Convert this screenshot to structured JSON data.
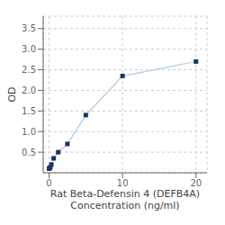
{
  "chart_data": {
    "type": "line",
    "xlabel": "Rat Beta-Defensin 4 (DEFB4A)\nConcentration (ng/ml)",
    "ylabel": "OD",
    "x": [
      0.0,
      0.078,
      0.156,
      0.313,
      0.625,
      1.25,
      2.5,
      5,
      10,
      20
    ],
    "series": [
      {
        "type": "line",
        "color": "#b8d4e8",
        "values": [
          0.1,
          0.115,
          0.13,
          0.2,
          0.35,
          0.5,
          0.7,
          1.4,
          2.35,
          2.7
        ]
      },
      {
        "type": "scatter",
        "marker": "square",
        "color": "#1a3560",
        "values": [
          0.1,
          0.115,
          0.13,
          0.2,
          0.35,
          0.5,
          0.7,
          1.4,
          2.35,
          2.7
        ]
      }
    ],
    "xlim": [
      -0.8,
      21.5
    ],
    "ylim": [
      0,
      3.8
    ],
    "xticks": [
      0,
      10,
      20
    ],
    "yticks": [
      0.5,
      {
        "value": 1.0,
        "label": "1.0"
      },
      1.5,
      {
        "value": 2.0,
        "label": "2.0"
      },
      2.5,
      {
        "value": 3.0,
        "label": "3.0"
      },
      3.5
    ],
    "grid": true
  }
}
